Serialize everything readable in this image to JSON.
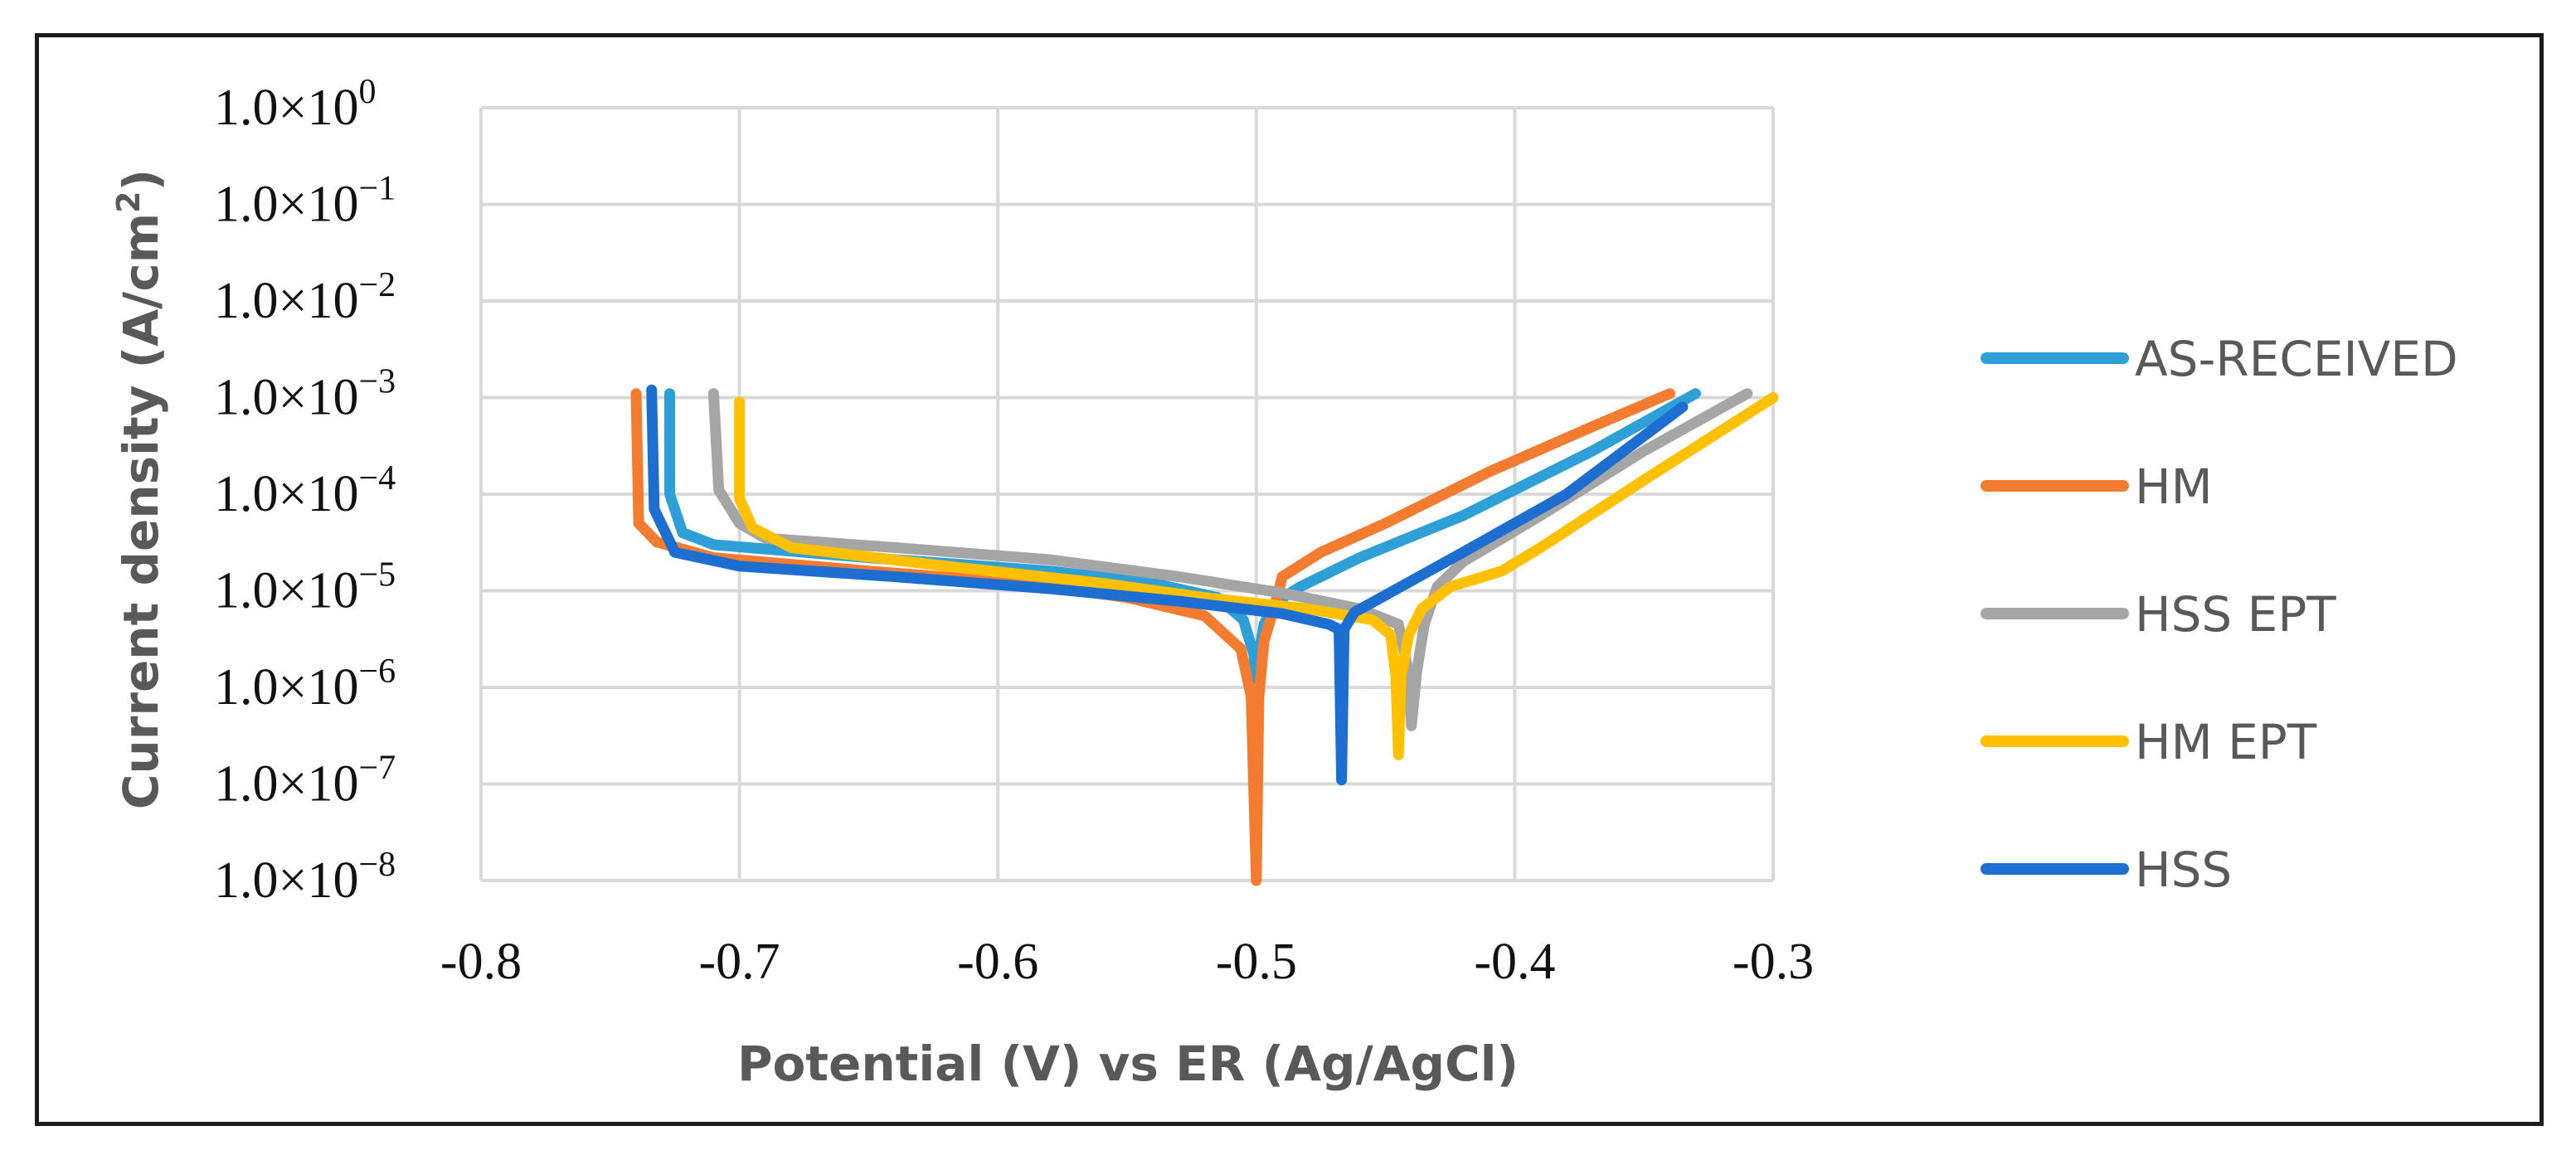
{
  "chart_data": {
    "type": "line",
    "title": "",
    "xlabel": "Potential (V) vs ER (Ag/AgCl)",
    "ylabel": "Current density (A/cm2)",
    "ylabel_parts": {
      "main": "Current density (A/cm",
      "sup": "2",
      "end": ")"
    },
    "x_scale": "linear",
    "y_scale": "log",
    "xlim": [
      -0.8,
      -0.3
    ],
    "ylim": [
      1e-08,
      1
    ],
    "x_ticks": [
      -0.8,
      -0.7,
      -0.6,
      -0.5,
      -0.4,
      -0.3
    ],
    "x_tick_labels": [
      "-0.8",
      "-0.7",
      "-0.6",
      "-0.5",
      "-0.4",
      "-0.3"
    ],
    "y_ticks": [
      {
        "value": 1,
        "base": "1.0×10",
        "exp": "0"
      },
      {
        "value": 0.1,
        "base": "1.0×10",
        "exp": "−1"
      },
      {
        "value": 0.01,
        "base": "1.0×10",
        "exp": "−2"
      },
      {
        "value": 0.001,
        "base": "1.0×10",
        "exp": "−3"
      },
      {
        "value": 0.0001,
        "base": "1.0×10",
        "exp": "−4"
      },
      {
        "value": 1e-05,
        "base": "1.0×10",
        "exp": "−5"
      },
      {
        "value": 1e-06,
        "base": "1.0×10",
        "exp": "−6"
      },
      {
        "value": 1e-07,
        "base": "1.0×10",
        "exp": "−7"
      },
      {
        "value": 1e-08,
        "base": "1.0×10",
        "exp": "−8"
      }
    ],
    "grid": true,
    "legend_position": "right",
    "series": [
      {
        "name": "AS-RECEIVED",
        "color": "#2f9fd8",
        "points": [
          [
            -0.727,
            0.0011
          ],
          [
            -0.727,
            0.0001
          ],
          [
            -0.722,
            4e-05
          ],
          [
            -0.71,
            3e-05
          ],
          [
            -0.65,
            2.2e-05
          ],
          [
            -0.58,
            1.6e-05
          ],
          [
            -0.54,
            1.2e-05
          ],
          [
            -0.515,
            8.5e-06
          ],
          [
            -0.505,
            5e-06
          ],
          [
            -0.501,
            2.2e-06
          ],
          [
            -0.5,
            1.2e-06
          ],
          [
            -0.499,
            2.2e-06
          ],
          [
            -0.497,
            4.5e-06
          ],
          [
            -0.493,
            7.5e-06
          ],
          [
            -0.483,
            1.1e-05
          ],
          [
            -0.46,
            2.2e-05
          ],
          [
            -0.42,
            6e-05
          ],
          [
            -0.37,
            0.00028
          ],
          [
            -0.33,
            0.0011
          ]
        ]
      },
      {
        "name": "HM",
        "color": "#f47c30",
        "points": [
          [
            -0.74,
            0.0011
          ],
          [
            -0.739,
            5e-05
          ],
          [
            -0.732,
            3.2e-05
          ],
          [
            -0.71,
            2.2e-05
          ],
          [
            -0.65,
            1.6e-05
          ],
          [
            -0.59,
            1.2e-05
          ],
          [
            -0.55,
            8.5e-06
          ],
          [
            -0.52,
            5.5e-06
          ],
          [
            -0.506,
            2.5e-06
          ],
          [
            -0.502,
            8e-07
          ],
          [
            -0.5,
            1e-08
          ],
          [
            -0.499,
            8e-07
          ],
          [
            -0.497,
            3e-06
          ],
          [
            -0.492,
            8.5e-06
          ],
          [
            -0.49,
            1.4e-05
          ],
          [
            -0.475,
            2.5e-05
          ],
          [
            -0.45,
            5e-05
          ],
          [
            -0.41,
            0.00017
          ],
          [
            -0.37,
            0.0005
          ],
          [
            -0.34,
            0.0011
          ]
        ]
      },
      {
        "name": "HSS EPT",
        "color": "#a5a5a5",
        "points": [
          [
            -0.71,
            0.0011
          ],
          [
            -0.708,
            0.00011
          ],
          [
            -0.7,
            5e-05
          ],
          [
            -0.69,
            3.5e-05
          ],
          [
            -0.64,
            2.8e-05
          ],
          [
            -0.58,
            2.1e-05
          ],
          [
            -0.53,
            1.4e-05
          ],
          [
            -0.49,
            9.5e-06
          ],
          [
            -0.46,
            6.5e-06
          ],
          [
            -0.445,
            4.5e-06
          ],
          [
            -0.441,
            1.4e-06
          ],
          [
            -0.44,
            4e-07
          ],
          [
            -0.438,
            1.4e-06
          ],
          [
            -0.435,
            4.5e-06
          ],
          [
            -0.43,
            1.1e-05
          ],
          [
            -0.42,
            2e-05
          ],
          [
            -0.39,
            6e-05
          ],
          [
            -0.35,
            0.00028
          ],
          [
            -0.31,
            0.0011
          ]
        ]
      },
      {
        "name": "HM EPT",
        "color": "#ffc000",
        "points": [
          [
            -0.7,
            0.0009
          ],
          [
            -0.7,
            9e-05
          ],
          [
            -0.695,
            4.5e-05
          ],
          [
            -0.68,
            2.8e-05
          ],
          [
            -0.62,
            1.8e-05
          ],
          [
            -0.56,
            1.2e-05
          ],
          [
            -0.52,
            8.5e-06
          ],
          [
            -0.48,
            6.5e-06
          ],
          [
            -0.455,
            5e-06
          ],
          [
            -0.448,
            3.5e-06
          ],
          [
            -0.446,
            1.3e-06
          ],
          [
            -0.445,
            2e-07
          ],
          [
            -0.444,
            1.3e-06
          ],
          [
            -0.441,
            3.5e-06
          ],
          [
            -0.436,
            6.5e-06
          ],
          [
            -0.425,
            1.1e-05
          ],
          [
            -0.405,
            1.6e-05
          ],
          [
            -0.39,
            2.8e-05
          ],
          [
            -0.35,
            0.00014
          ],
          [
            -0.3,
            0.001
          ]
        ]
      },
      {
        "name": "HSS",
        "color": "#1c6fd1",
        "points": [
          [
            -0.734,
            0.0012
          ],
          [
            -0.733,
            7e-05
          ],
          [
            -0.725,
            2.5e-05
          ],
          [
            -0.7,
            1.8e-05
          ],
          [
            -0.64,
            1.4e-05
          ],
          [
            -0.58,
            1.05e-05
          ],
          [
            -0.53,
            7.8e-06
          ],
          [
            -0.49,
            5.8e-06
          ],
          [
            -0.472,
            4.5e-06
          ],
          [
            -0.468,
            4e-06
          ],
          [
            -0.467,
            1.1e-07
          ],
          [
            -0.466,
            4e-06
          ],
          [
            -0.462,
            6e-06
          ],
          [
            -0.45,
            9e-06
          ],
          [
            -0.42,
            2.5e-05
          ],
          [
            -0.38,
            0.0001
          ],
          [
            -0.335,
            0.0008
          ]
        ]
      }
    ]
  }
}
